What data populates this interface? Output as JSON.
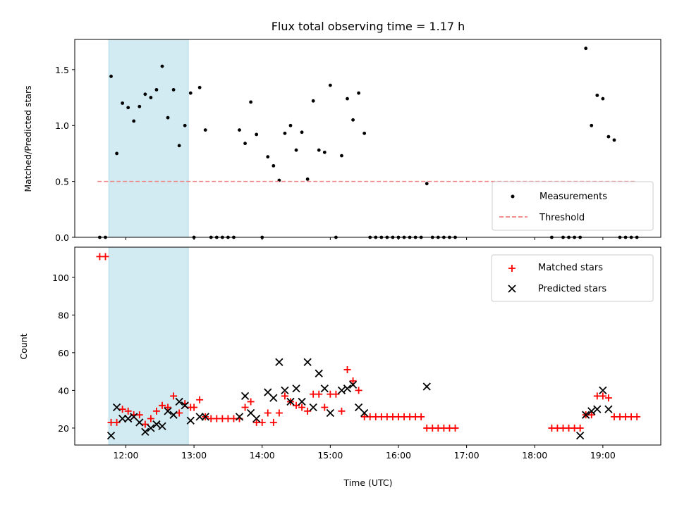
{
  "chart_data": [
    {
      "type": "scatter",
      "title": "Flux total observing time = 1.17 h",
      "xlabel": "",
      "ylabel": "Matched/Predicted stars",
      "x_range_hours": [
        11.25,
        19.85
      ],
      "ylim": [
        0,
        1.77
      ],
      "yticks": [
        0.0,
        0.5,
        1.0,
        1.5
      ],
      "ytick_labels": [
        "0.0",
        "0.5",
        "1.0",
        "1.5"
      ],
      "shaded_interval": {
        "start": "11:45",
        "end": "12:55",
        "color": "#add8e6"
      },
      "legend": {
        "position": "lower-right",
        "entries": [
          "Measurements",
          "Threshold"
        ]
      },
      "series": [
        {
          "name": "Measurements",
          "marker": "dot",
          "color": "#000000",
          "points": [
            [
              "11:37",
              0
            ],
            [
              "11:42",
              0
            ],
            [
              "11:47",
              1.44
            ],
            [
              "11:52",
              0.75
            ],
            [
              "11:57",
              1.2
            ],
            [
              "12:02",
              1.16
            ],
            [
              "12:07",
              1.04
            ],
            [
              "12:12",
              1.17
            ],
            [
              "12:17",
              1.28
            ],
            [
              "12:22",
              1.25
            ],
            [
              "12:27",
              1.32
            ],
            [
              "12:32",
              1.53
            ],
            [
              "12:37",
              1.07
            ],
            [
              "12:42",
              1.32
            ],
            [
              "12:47",
              0.82
            ],
            [
              "12:52",
              1.0
            ],
            [
              "12:57",
              1.29
            ],
            [
              "13:00",
              0
            ],
            [
              "13:05",
              1.34
            ],
            [
              "13:10",
              0.96
            ],
            [
              "13:15",
              0
            ],
            [
              "13:20",
              0
            ],
            [
              "13:25",
              0
            ],
            [
              "13:30",
              0
            ],
            [
              "13:35",
              0
            ],
            [
              "13:40",
              0.96
            ],
            [
              "13:45",
              0.84
            ],
            [
              "13:50",
              1.21
            ],
            [
              "13:55",
              0.92
            ],
            [
              "14:00",
              0
            ],
            [
              "14:05",
              0.72
            ],
            [
              "14:10",
              0.64
            ],
            [
              "14:15",
              0.51
            ],
            [
              "14:20",
              0.93
            ],
            [
              "14:25",
              1.0
            ],
            [
              "14:30",
              0.78
            ],
            [
              "14:35",
              0.94
            ],
            [
              "14:40",
              0.52
            ],
            [
              "14:45",
              1.22
            ],
            [
              "14:50",
              0.78
            ],
            [
              "14:55",
              0.76
            ],
            [
              "15:00",
              1.36
            ],
            [
              "15:05",
              0
            ],
            [
              "15:10",
              0.73
            ],
            [
              "15:15",
              1.24
            ],
            [
              "15:20",
              1.05
            ],
            [
              "15:25",
              1.29
            ],
            [
              "15:30",
              0.93
            ],
            [
              "15:35",
              0
            ],
            [
              "15:40",
              0
            ],
            [
              "15:45",
              0
            ],
            [
              "15:50",
              0
            ],
            [
              "15:55",
              0
            ],
            [
              "16:00",
              0
            ],
            [
              "16:05",
              0
            ],
            [
              "16:10",
              0
            ],
            [
              "16:15",
              0
            ],
            [
              "16:20",
              0
            ],
            [
              "16:25",
              0.48
            ],
            [
              "16:30",
              0
            ],
            [
              "16:35",
              0
            ],
            [
              "16:40",
              0
            ],
            [
              "16:45",
              0
            ],
            [
              "16:50",
              0
            ],
            [
              "18:15",
              0
            ],
            [
              "18:25",
              0
            ],
            [
              "18:30",
              0
            ],
            [
              "18:35",
              0
            ],
            [
              "18:40",
              0
            ],
            [
              "18:45",
              1.69
            ],
            [
              "18:50",
              1.0
            ],
            [
              "18:55",
              1.27
            ],
            [
              "19:00",
              1.24
            ],
            [
              "19:05",
              0.9
            ],
            [
              "19:10",
              0.87
            ],
            [
              "19:15",
              0
            ],
            [
              "19:20",
              0
            ],
            [
              "19:25",
              0
            ],
            [
              "19:30",
              0
            ]
          ]
        },
        {
          "name": "Threshold",
          "marker": "dashed-line",
          "color": "#f08080",
          "value": 0.5,
          "x_span": [
            "11:35",
            "19:30"
          ]
        }
      ]
    },
    {
      "type": "scatter",
      "title": "",
      "xlabel": "Time (UTC)",
      "ylabel": "Count",
      "x_range_hours": [
        11.25,
        19.85
      ],
      "ylim": [
        11,
        116
      ],
      "yticks": [
        20,
        40,
        60,
        80,
        100
      ],
      "ytick_labels": [
        "20",
        "40",
        "60",
        "80",
        "100"
      ],
      "xticks": [
        "12:00",
        "13:00",
        "14:00",
        "15:00",
        "16:00",
        "17:00",
        "18:00",
        "19:00"
      ],
      "shaded_interval": {
        "start": "11:45",
        "end": "12:55",
        "color": "#add8e6"
      },
      "legend": {
        "position": "top-right",
        "entries": [
          "Matched stars",
          "Predicted stars"
        ]
      },
      "series": [
        {
          "name": "Matched stars",
          "marker": "plus",
          "color": "#ff0000",
          "points": [
            [
              "11:37",
              111
            ],
            [
              "11:42",
              111
            ],
            [
              "11:47",
              23
            ],
            [
              "11:52",
              23
            ],
            [
              "11:57",
              30
            ],
            [
              "12:02",
              29
            ],
            [
              "12:07",
              27
            ],
            [
              "12:12",
              27
            ],
            [
              "12:17",
              22
            ],
            [
              "12:22",
              25
            ],
            [
              "12:27",
              29
            ],
            [
              "12:32",
              32
            ],
            [
              "12:37",
              31
            ],
            [
              "12:42",
              37
            ],
            [
              "12:47",
              28
            ],
            [
              "12:52",
              33
            ],
            [
              "12:57",
              31
            ],
            [
              "13:00",
              31
            ],
            [
              "13:05",
              35
            ],
            [
              "13:10",
              26
            ],
            [
              "13:15",
              25
            ],
            [
              "13:20",
              25
            ],
            [
              "13:25",
              25
            ],
            [
              "13:30",
              25
            ],
            [
              "13:35",
              25
            ],
            [
              "13:40",
              25
            ],
            [
              "13:45",
              31
            ],
            [
              "13:50",
              34
            ],
            [
              "13:55",
              23
            ],
            [
              "14:00",
              23
            ],
            [
              "14:05",
              28
            ],
            [
              "14:10",
              23
            ],
            [
              "14:15",
              28
            ],
            [
              "14:20",
              37
            ],
            [
              "14:25",
              34
            ],
            [
              "14:30",
              32
            ],
            [
              "14:35",
              31
            ],
            [
              "14:40",
              29
            ],
            [
              "14:45",
              38
            ],
            [
              "14:50",
              38
            ],
            [
              "14:55",
              31
            ],
            [
              "15:00",
              38
            ],
            [
              "15:05",
              38
            ],
            [
              "15:10",
              29
            ],
            [
              "15:15",
              51
            ],
            [
              "15:20",
              45
            ],
            [
              "15:25",
              40
            ],
            [
              "15:30",
              26
            ],
            [
              "15:35",
              26
            ],
            [
              "15:40",
              26
            ],
            [
              "15:45",
              26
            ],
            [
              "15:50",
              26
            ],
            [
              "15:55",
              26
            ],
            [
              "16:00",
              26
            ],
            [
              "16:05",
              26
            ],
            [
              "16:10",
              26
            ],
            [
              "16:15",
              26
            ],
            [
              "16:20",
              26
            ],
            [
              "16:25",
              20
            ],
            [
              "16:30",
              20
            ],
            [
              "16:35",
              20
            ],
            [
              "16:40",
              20
            ],
            [
              "16:45",
              20
            ],
            [
              "16:50",
              20
            ],
            [
              "18:15",
              20
            ],
            [
              "18:20",
              20
            ],
            [
              "18:25",
              20
            ],
            [
              "18:30",
              20
            ],
            [
              "18:35",
              20
            ],
            [
              "18:40",
              20
            ],
            [
              "18:45",
              27
            ],
            [
              "18:50",
              27
            ],
            [
              "18:55",
              37
            ],
            [
              "19:00",
              37
            ],
            [
              "19:05",
              36
            ],
            [
              "19:10",
              26
            ],
            [
              "19:15",
              26
            ],
            [
              "19:20",
              26
            ],
            [
              "19:25",
              26
            ],
            [
              "19:30",
              26
            ]
          ]
        },
        {
          "name": "Predicted stars",
          "marker": "x",
          "color": "#000000",
          "points": [
            [
              "11:47",
              16
            ],
            [
              "11:52",
              31
            ],
            [
              "11:57",
              25
            ],
            [
              "12:02",
              25
            ],
            [
              "12:07",
              26
            ],
            [
              "12:12",
              23
            ],
            [
              "12:17",
              18
            ],
            [
              "12:22",
              20
            ],
            [
              "12:27",
              22
            ],
            [
              "12:32",
              21
            ],
            [
              "12:37",
              29
            ],
            [
              "12:42",
              27
            ],
            [
              "12:47",
              34
            ],
            [
              "12:52",
              32
            ],
            [
              "12:57",
              24
            ],
            [
              "13:05",
              26
            ],
            [
              "13:10",
              26
            ],
            [
              "13:40",
              26
            ],
            [
              "13:45",
              37
            ],
            [
              "13:50",
              28
            ],
            [
              "13:55",
              25
            ],
            [
              "14:05",
              39
            ],
            [
              "14:10",
              36
            ],
            [
              "14:15",
              55
            ],
            [
              "14:20",
              40
            ],
            [
              "14:25",
              34
            ],
            [
              "14:30",
              41
            ],
            [
              "14:35",
              34
            ],
            [
              "14:40",
              55
            ],
            [
              "14:45",
              31
            ],
            [
              "14:50",
              49
            ],
            [
              "14:55",
              41
            ],
            [
              "15:00",
              28
            ],
            [
              "15:10",
              40
            ],
            [
              "15:15",
              41
            ],
            [
              "15:20",
              43
            ],
            [
              "15:25",
              31
            ],
            [
              "15:30",
              28
            ],
            [
              "16:25",
              42
            ],
            [
              "18:40",
              16
            ],
            [
              "18:45",
              27
            ],
            [
              "18:50",
              29
            ],
            [
              "18:55",
              30
            ],
            [
              "19:00",
              40
            ],
            [
              "19:05",
              30
            ]
          ]
        }
      ]
    }
  ]
}
